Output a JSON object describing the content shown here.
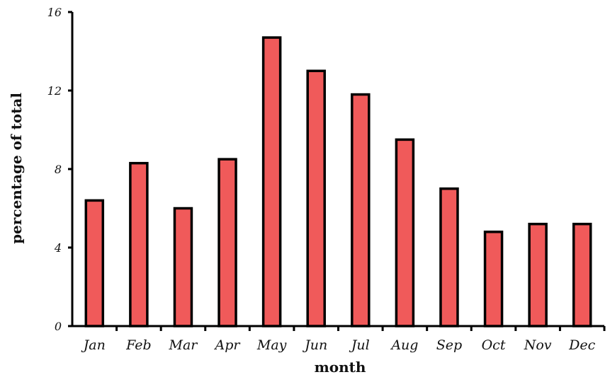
{
  "chart_data": {
    "type": "bar",
    "title": "",
    "xlabel": "month",
    "ylabel": "percentage of total",
    "categories": [
      "Jan",
      "Feb",
      "Mar",
      "Apr",
      "May",
      "Jun",
      "Jul",
      "Aug",
      "Sep",
      "Oct",
      "Nov",
      "Dec"
    ],
    "values": [
      6.4,
      8.3,
      6.0,
      8.5,
      14.7,
      13.0,
      11.8,
      9.5,
      7.0,
      4.8,
      5.2,
      5.2
    ],
    "ylim": [
      0,
      16
    ],
    "yticks": [
      0,
      4,
      8,
      12,
      16
    ],
    "grid": false,
    "bar_color": "#f05a5a",
    "bar_edge_color": "#000000"
  }
}
